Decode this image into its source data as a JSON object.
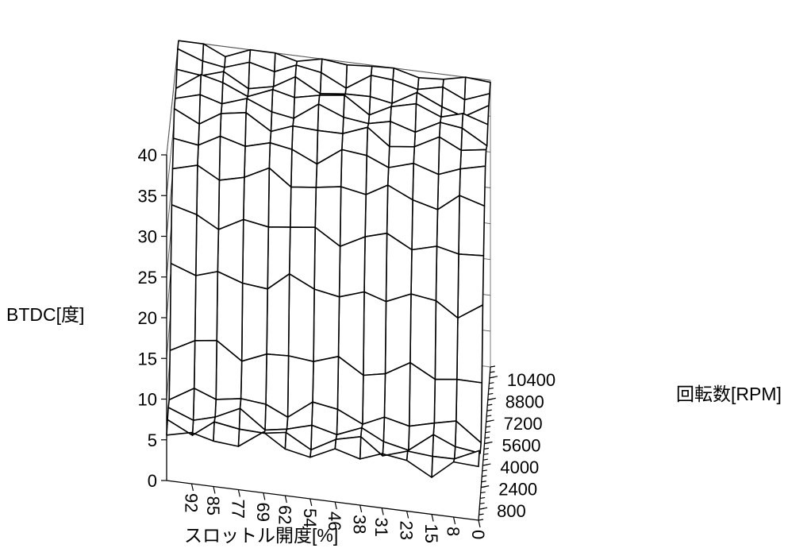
{
  "chart_data": {
    "type": "surface",
    "title": "",
    "zlabel": "BTDC[度]",
    "ylabel": "回転数[RPM]",
    "xlabel": "スロットル開度[%]",
    "z_ticks": [
      "0",
      "5",
      "10",
      "15",
      "20",
      "25",
      "30",
      "35",
      "40"
    ],
    "zlim": [
      0,
      40
    ],
    "rpm_ticks": [
      "800",
      "2400",
      "4000",
      "5600",
      "7200",
      "8800",
      "10400"
    ],
    "rpm_range": [
      0,
      11200
    ],
    "throttle_ticks": [
      "92",
      "85",
      "77",
      "69",
      "62",
      "54",
      "46",
      "38",
      "31",
      "23",
      "15",
      "8",
      "0"
    ],
    "throttle_range": [
      0,
      100
    ],
    "surface_rpm": [
      0,
      800,
      1600,
      2400,
      3200,
      4000,
      4800,
      5600,
      6400,
      7200,
      8000,
      8800,
      9600,
      10400,
      11200
    ],
    "surface_throttle": [
      0,
      8,
      15,
      23,
      31,
      38,
      46,
      54,
      62,
      69,
      77,
      85,
      92,
      100
    ],
    "z_profile_by_rpm": [
      6,
      6,
      6,
      7,
      12,
      20,
      26,
      31,
      34,
      36,
      37,
      38,
      38,
      39,
      40
    ]
  }
}
